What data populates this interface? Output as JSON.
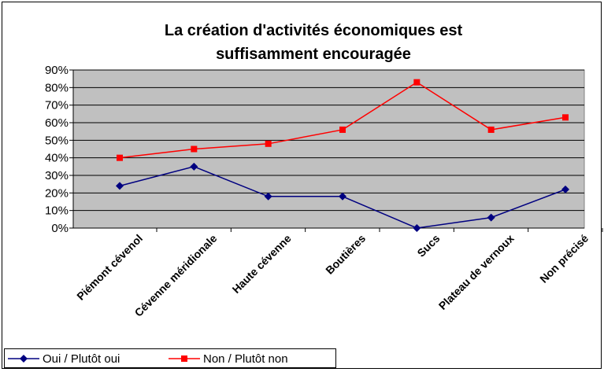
{
  "chart_data": {
    "type": "line",
    "title_lines": [
      "La création d'activités économiques est",
      "suffisamment encouragée"
    ],
    "categories": [
      "Piémont cévenol",
      "Cévenne méridionale",
      "Haute cévenne",
      "Boutières",
      "Sucs",
      "Plateau de vernoux",
      "Non précisé"
    ],
    "series": [
      {
        "name": "Oui / Plutôt oui",
        "color": "#000080",
        "marker": "diamond",
        "values": [
          24,
          35,
          18,
          18,
          0,
          6,
          22
        ]
      },
      {
        "name": "Non / Plutôt non",
        "color": "#ff0000",
        "marker": "square",
        "values": [
          40,
          45,
          48,
          56,
          83,
          56,
          63
        ]
      }
    ],
    "ylim": [
      0,
      90
    ],
    "yticks": [
      {
        "value": 0,
        "label": "0%"
      },
      {
        "value": 10,
        "label": "10%"
      },
      {
        "value": 20,
        "label": "20%"
      },
      {
        "value": 30,
        "label": "30%"
      },
      {
        "value": 40,
        "label": "40%"
      },
      {
        "value": 50,
        "label": "50%"
      },
      {
        "value": 60,
        "label": "60%"
      },
      {
        "value": 70,
        "label": "70%"
      },
      {
        "value": 80,
        "label": "80%"
      },
      {
        "value": 90,
        "label": "90%"
      }
    ],
    "grid": true,
    "plot_background": "#c0c0c0",
    "legend": "bottom-left"
  }
}
